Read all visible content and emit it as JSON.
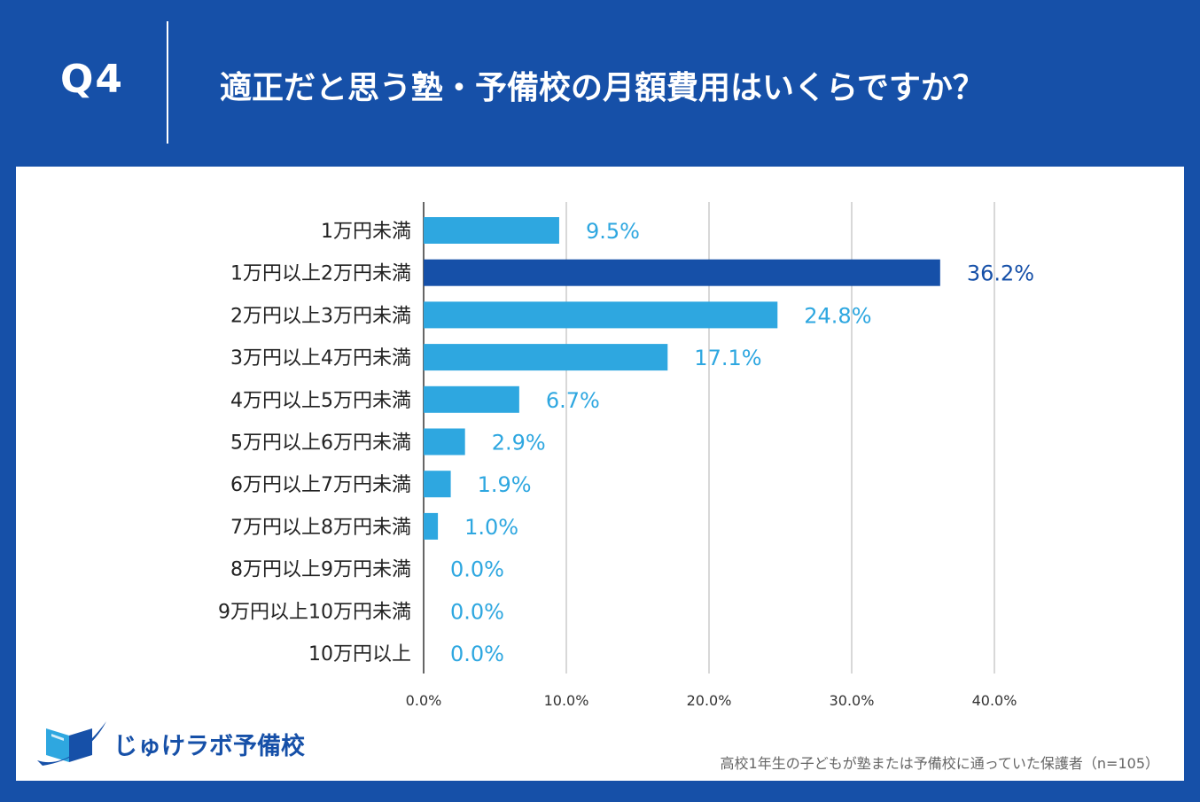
{
  "header": {
    "question_number": "Q4",
    "title": "適正だと思う塾・予備校の月額費用はいくらですか？"
  },
  "colors": {
    "background": "#1650a8",
    "bar_default": "#2ea7e0",
    "bar_highlight": "#1650a8",
    "label_default": "#2ea7e0",
    "label_highlight": "#1650a8",
    "grid": "#cccccc",
    "axis_text": "#333333"
  },
  "chart_data": {
    "type": "bar",
    "orientation": "horizontal",
    "categories": [
      "1万円未満",
      "1万円以上2万円未満",
      "2万円以上3万円未満",
      "3万円以上4万円未満",
      "4万円以上5万円未満",
      "5万円以上6万円未満",
      "6万円以上7万円未満",
      "7万円以上8万円未満",
      "8万円以上9万円未満",
      "9万円以上10万円未満",
      "10万円以上"
    ],
    "values": [
      9.5,
      36.2,
      24.8,
      17.1,
      6.7,
      2.9,
      1.9,
      1.0,
      0.0,
      0.0,
      0.0
    ],
    "data_labels": [
      "9.5%",
      "36.2%",
      "24.8%",
      "17.1%",
      "6.7%",
      "2.9%",
      "1.9%",
      "1.0%",
      "0.0%",
      "0.0%",
      "0.0%"
    ],
    "highlight_index": 1,
    "xlim": [
      0,
      40
    ],
    "xticks": [
      0,
      10,
      20,
      30,
      40
    ],
    "xtick_labels": [
      "0.0%",
      "10.0%",
      "20.0%",
      "30.0%",
      "40.0%"
    ],
    "grid": true,
    "title": "",
    "xlabel": "",
    "ylabel": ""
  },
  "logo": {
    "text": "じゅけラボ予備校",
    "icon": "book-swoosh-icon"
  },
  "footnote": "高校1年生の子どもが塾または予備校に通っていた保護者（n=105）"
}
